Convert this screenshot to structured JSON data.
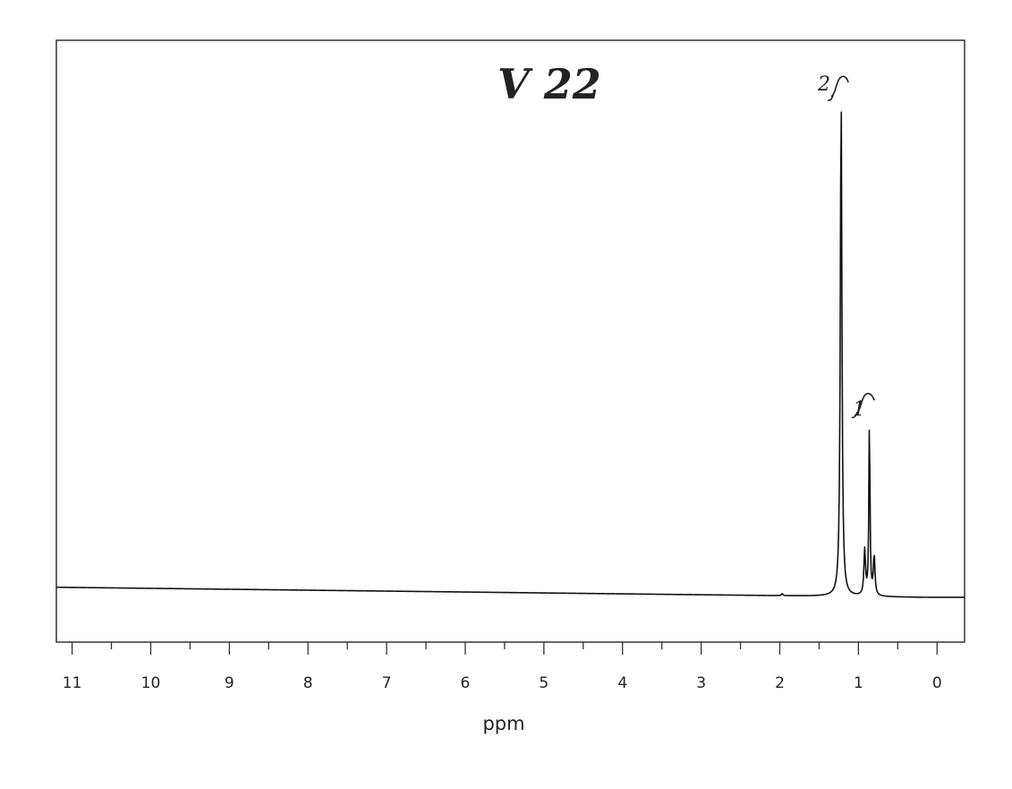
{
  "chart_data": {
    "type": "line",
    "xlabel": "ppm",
    "xlim": [
      11.2,
      -0.35
    ],
    "x_reversed": true,
    "ticks": [
      11,
      10,
      9,
      8,
      7,
      6,
      5,
      4,
      3,
      2,
      1,
      0
    ],
    "tick_labels": [
      "11",
      "10",
      "9",
      "8",
      "7",
      "6",
      "5",
      "4",
      "3",
      "2",
      "1",
      "0"
    ],
    "ylim": [
      0,
      1
    ],
    "annotations": {
      "sample_label": "V 22",
      "integrals": [
        {
          "text": "2",
          "x": 1.2
        },
        {
          "text": "1",
          "x": 0.88
        }
      ]
    },
    "peaks": [
      {
        "x": 1.22,
        "height": 1.0,
        "width": 0.012
      },
      {
        "x": 0.92,
        "height": 0.09,
        "width": 0.012
      },
      {
        "x": 0.86,
        "height": 0.36,
        "width": 0.008
      },
      {
        "x": 0.8,
        "height": 0.08,
        "width": 0.012
      },
      {
        "x": 1.97,
        "height": 0.004,
        "width": 0.01
      }
    ],
    "baseline": {
      "start": 0.02,
      "end": 0.0
    }
  }
}
